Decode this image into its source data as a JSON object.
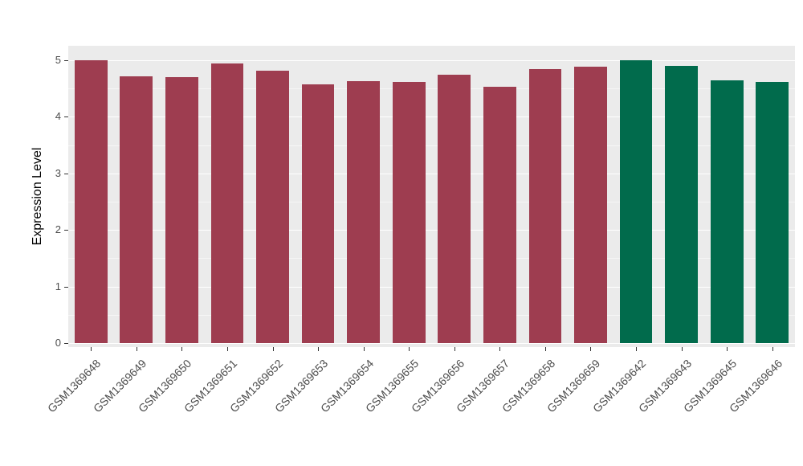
{
  "chart_data": {
    "type": "bar",
    "title": "",
    "xlabel": "",
    "ylabel": "Expression Level",
    "ylim": [
      0,
      5
    ],
    "yticks": [
      0,
      1,
      2,
      3,
      4,
      5
    ],
    "grid": true,
    "legend_position": "none",
    "panel_bg": "#EBEBEB",
    "gridline_color": "#FFFFFF",
    "categories": [
      "GSM1369648",
      "GSM1369649",
      "GSM1369650",
      "GSM1369651",
      "GSM1369652",
      "GSM1369653",
      "GSM1369654",
      "GSM1369655",
      "GSM1369656",
      "GSM1369657",
      "GSM1369658",
      "GSM1369659",
      "GSM1369642",
      "GSM1369643",
      "GSM1369645",
      "GSM1369646"
    ],
    "values": [
      5.0,
      4.72,
      4.7,
      4.95,
      4.81,
      4.57,
      4.63,
      4.62,
      4.75,
      4.53,
      4.85,
      4.89,
      5.0,
      4.9,
      4.65,
      4.61
    ],
    "bar_groups": [
      "group1",
      "group1",
      "group1",
      "group1",
      "group1",
      "group1",
      "group1",
      "group1",
      "group1",
      "group1",
      "group1",
      "group1",
      "group2",
      "group2",
      "group2",
      "group2"
    ],
    "group_colors": {
      "group1": "#9E3D50",
      "group2": "#016B4C"
    }
  }
}
